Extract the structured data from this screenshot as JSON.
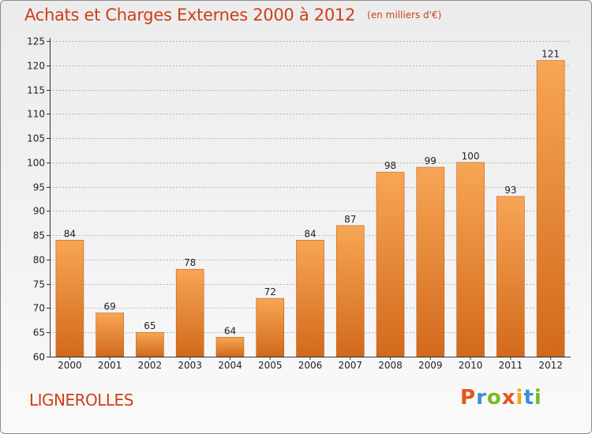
{
  "header": {
    "title": "Achats et Charges Externes 2000 à 2012",
    "subtitle": "(en milliers d'€)"
  },
  "footer": {
    "place": "LIGNEROLLES",
    "logo_text": "Proxiti",
    "logo_colors": [
      "#e8541a",
      "#3a8ed6",
      "#7ab929",
      "#e8541a",
      "#f2a71c",
      "#3a8ed6",
      "#7ab929"
    ]
  },
  "colors": {
    "bar_top": "#f7a655",
    "bar_bottom": "#d2691c",
    "bar_edge": "#c0601a",
    "axis": "#333333",
    "grid": "#b5b5b5",
    "text": "#222222"
  },
  "chart_data": {
    "type": "bar",
    "title": "Achats et Charges Externes 2000 à 2012",
    "subtitle": "(en milliers d'€)",
    "categories": [
      "2000",
      "2001",
      "2002",
      "2003",
      "2004",
      "2005",
      "2006",
      "2007",
      "2008",
      "2009",
      "2010",
      "2011",
      "2012"
    ],
    "values": [
      84,
      69,
      65,
      78,
      64,
      72,
      84,
      87,
      98,
      99,
      100,
      93,
      121
    ],
    "data_labels": [
      "84",
      "69",
      "65",
      "78",
      "64",
      "72",
      "84",
      "87",
      "98",
      "99",
      "100",
      "93",
      "121"
    ],
    "ylim": [
      60,
      125
    ],
    "yticks": [
      60,
      65,
      70,
      75,
      80,
      85,
      90,
      95,
      100,
      105,
      110,
      115,
      120,
      125
    ],
    "grid": true,
    "legend": "none"
  }
}
